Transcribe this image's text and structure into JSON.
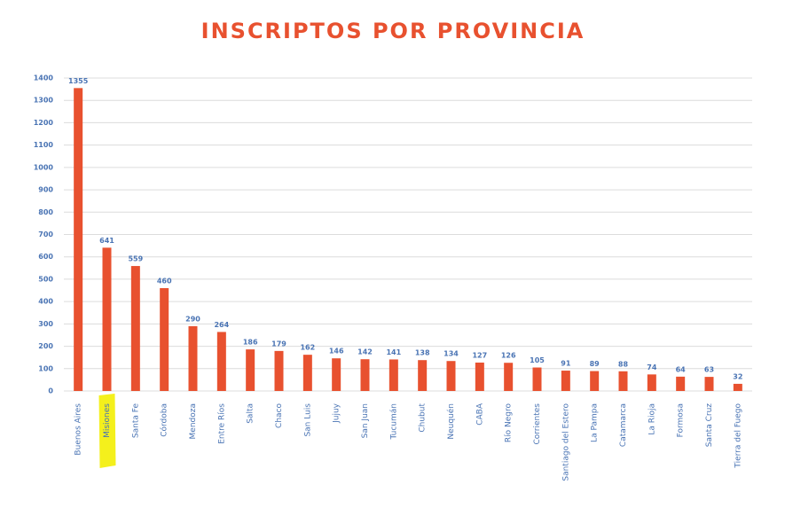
{
  "chart_data": {
    "type": "bar",
    "title": "INSCRIPTOS POR PROVINCIA",
    "title_color": "#e8512f",
    "categories": [
      "Buenos Aires",
      "Misiones",
      "Santa Fe",
      "Córdoba",
      "Mendoza",
      "Entre Ríos",
      "Salta",
      "Chaco",
      "San Luis",
      "Jujuy",
      "San Juan",
      "Tucumán",
      "Chubut",
      "Neuquén",
      "CABA",
      "Río Negro",
      "Corrientes",
      "Santiago del Estero",
      "La Pampa",
      "Catamarca",
      "La Rioja",
      "Formosa",
      "Santa Cruz",
      "Tierra del Fuego"
    ],
    "values": [
      1355,
      641,
      559,
      460,
      290,
      264,
      186,
      179,
      162,
      146,
      142,
      141,
      138,
      134,
      127,
      126,
      105,
      91,
      89,
      88,
      74,
      64,
      63,
      32
    ],
    "color": "#e8512f",
    "ylim": [
      0,
      1400
    ],
    "yticks": [
      0,
      100,
      200,
      300,
      400,
      500,
      600,
      700,
      800,
      900,
      1000,
      1100,
      1200,
      1300,
      1400
    ],
    "grid": true,
    "highlight": {
      "category": 1,
      "color": "#f4f01c",
      "label_color": "#3c9a3c"
    }
  }
}
